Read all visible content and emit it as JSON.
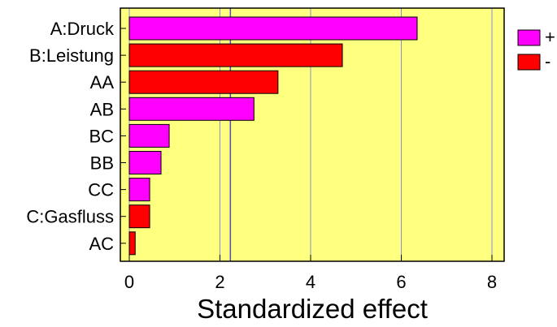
{
  "chart_data": {
    "type": "bar",
    "orientation": "horizontal",
    "categories": [
      "A:Druck",
      "B:Leistung",
      "AA",
      "AB",
      "BC",
      "BB",
      "CC",
      "C:Gasfluss",
      "AC"
    ],
    "values": [
      6.35,
      4.7,
      3.28,
      2.75,
      0.88,
      0.7,
      0.45,
      0.45,
      0.13
    ],
    "signs": [
      "+",
      "-",
      "-",
      "+",
      "+",
      "+",
      "+",
      "-",
      "-"
    ],
    "xlabel": "Standardized effect",
    "ylabel": "",
    "xlim": [
      0,
      8
    ],
    "x_ticks": [
      0,
      2,
      4,
      6,
      8
    ],
    "x_tick_labels": [
      "0",
      "2",
      "4",
      "6",
      "8"
    ],
    "reference_line": 2.23,
    "grid": true,
    "legend": {
      "placement": "right",
      "entries": [
        {
          "label": "+",
          "color": "#ff00ff"
        },
        {
          "label": "-",
          "color": "#ff0000"
        }
      ]
    },
    "colors": {
      "positive": "#ff00ff",
      "negative": "#ff0000",
      "plot_background": "#ffff80",
      "grid": "#8c8cd2",
      "reference_line": "#5050b4",
      "bar_outline": "#000000"
    }
  }
}
